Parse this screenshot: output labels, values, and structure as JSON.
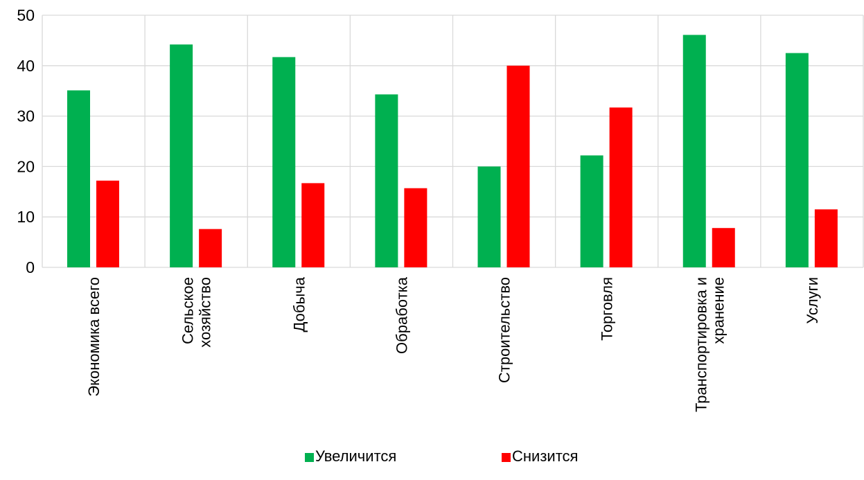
{
  "chart_data": {
    "type": "bar",
    "categories": [
      [
        "Экономика всего"
      ],
      [
        "Сельское",
        "хозяйство"
      ],
      [
        "Добыча"
      ],
      [
        "Обработка"
      ],
      [
        "Строительство"
      ],
      [
        "Торговля"
      ],
      [
        "Транспортировка и",
        "хранение"
      ],
      [
        "Услуги"
      ]
    ],
    "series": [
      {
        "name": "Увеличится",
        "color": "#00b050",
        "values": [
          35.1,
          44.2,
          41.7,
          34.3,
          20.0,
          22.2,
          46.1,
          42.5
        ]
      },
      {
        "name": "Снизится",
        "color": "#ff0000",
        "values": [
          17.2,
          7.6,
          16.7,
          15.7,
          40.0,
          31.7,
          7.8,
          11.5
        ]
      }
    ],
    "ylim": [
      0,
      50
    ],
    "yticks": [
      0,
      10,
      20,
      30,
      40,
      50
    ],
    "grid": true,
    "legend_position": "bottom",
    "title": "",
    "xlabel": "",
    "ylabel": ""
  }
}
